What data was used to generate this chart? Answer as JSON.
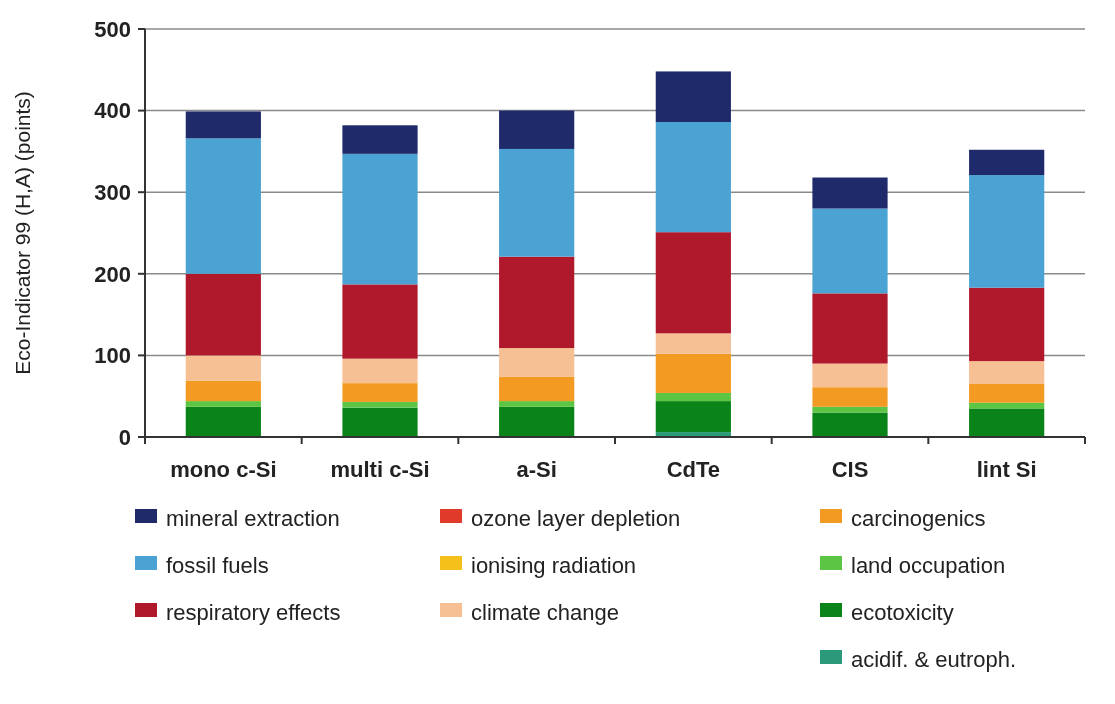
{
  "chart_data": {
    "type": "bar",
    "stacked": true,
    "ylabel": "Eco-Indicator 99 (H,A) (points)",
    "categories": [
      "mono c-Si",
      "multi c-Si",
      "a-Si",
      "CdTe",
      "CIS",
      "lint Si"
    ],
    "ylim": [
      0,
      500
    ],
    "yticks": [
      0,
      100,
      200,
      300,
      400,
      500
    ],
    "grid": "y",
    "legend": "bottom",
    "series": [
      {
        "name": "acidif. & eutroph.",
        "color": "#2a9a7a",
        "values": [
          0,
          0,
          0,
          6,
          0,
          0
        ]
      },
      {
        "name": "ecotoxicity",
        "color": "#0a8418",
        "values": [
          37,
          36,
          37,
          38,
          30,
          35
        ]
      },
      {
        "name": "land occupation",
        "color": "#5cc644",
        "values": [
          7,
          7,
          7,
          10,
          7,
          7
        ]
      },
      {
        "name": "carcinogenics",
        "color": "#f39a22",
        "values": [
          25,
          23,
          30,
          48,
          24,
          23
        ]
      },
      {
        "name": "climate change",
        "color": "#f7bf94",
        "values": [
          31,
          30,
          35,
          25,
          29,
          28
        ]
      },
      {
        "name": "ionising radiation",
        "color": "#f5c01a",
        "values": [
          0,
          0,
          0,
          0,
          0,
          0
        ]
      },
      {
        "name": "ozone layer depletion",
        "color": "#e03a2a",
        "values": [
          0,
          0,
          0,
          0,
          0,
          0
        ]
      },
      {
        "name": "respiratory effects",
        "color": "#b0182b",
        "values": [
          100,
          91,
          112,
          124,
          86,
          90
        ]
      },
      {
        "name": "fossil fuels",
        "color": "#4ba3d3",
        "values": [
          166,
          160,
          132,
          135,
          104,
          138
        ]
      },
      {
        "name": "mineral extraction",
        "color": "#1f2a6b",
        "values": [
          33,
          35,
          47,
          62,
          38,
          31
        ]
      }
    ]
  }
}
